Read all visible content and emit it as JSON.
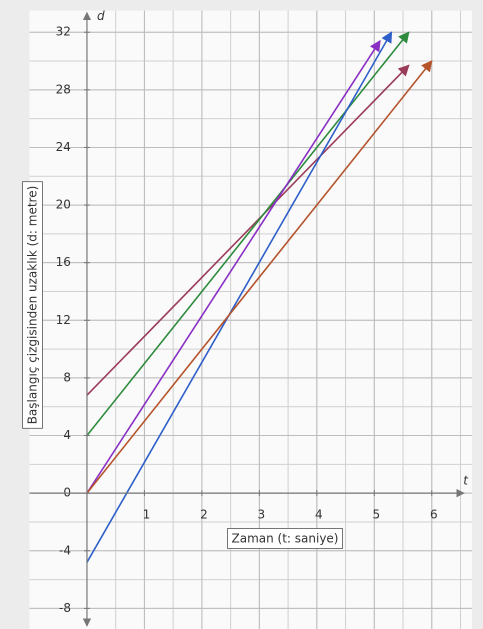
{
  "chart_data": {
    "type": "line",
    "xlabel": "Zaman (t: saniye)",
    "ylabel": "Başlangıç çizgisinden uzaklık (d: metre)",
    "x_axis_letter": "t",
    "y_axis_letter": "d",
    "xlim": [
      -1.0,
      6.7
    ],
    "ylim": [
      -9.5,
      33.5
    ],
    "xticks": [
      1,
      2,
      3,
      4,
      5,
      6
    ],
    "yticks": [
      -8,
      -4,
      0,
      4,
      8,
      12,
      16,
      20,
      24,
      28,
      32
    ],
    "grid": true,
    "series": [
      {
        "color": "#9b3b5a",
        "x": [
          0,
          5.6
        ],
        "values": [
          6.8,
          29.7
        ]
      },
      {
        "color": "#2e8b3e",
        "x": [
          0,
          5.6
        ],
        "values": [
          4,
          32
        ]
      },
      {
        "color": "#8a2fc4",
        "x": [
          0,
          5.1
        ],
        "values": [
          0,
          31.4
        ]
      },
      {
        "color": "#2f5fc9",
        "x": [
          0,
          5.3
        ],
        "values": [
          -4.8,
          32
        ]
      },
      {
        "color": "#b5532a",
        "x": [
          0,
          6.0
        ],
        "values": [
          0,
          30
        ]
      }
    ]
  }
}
